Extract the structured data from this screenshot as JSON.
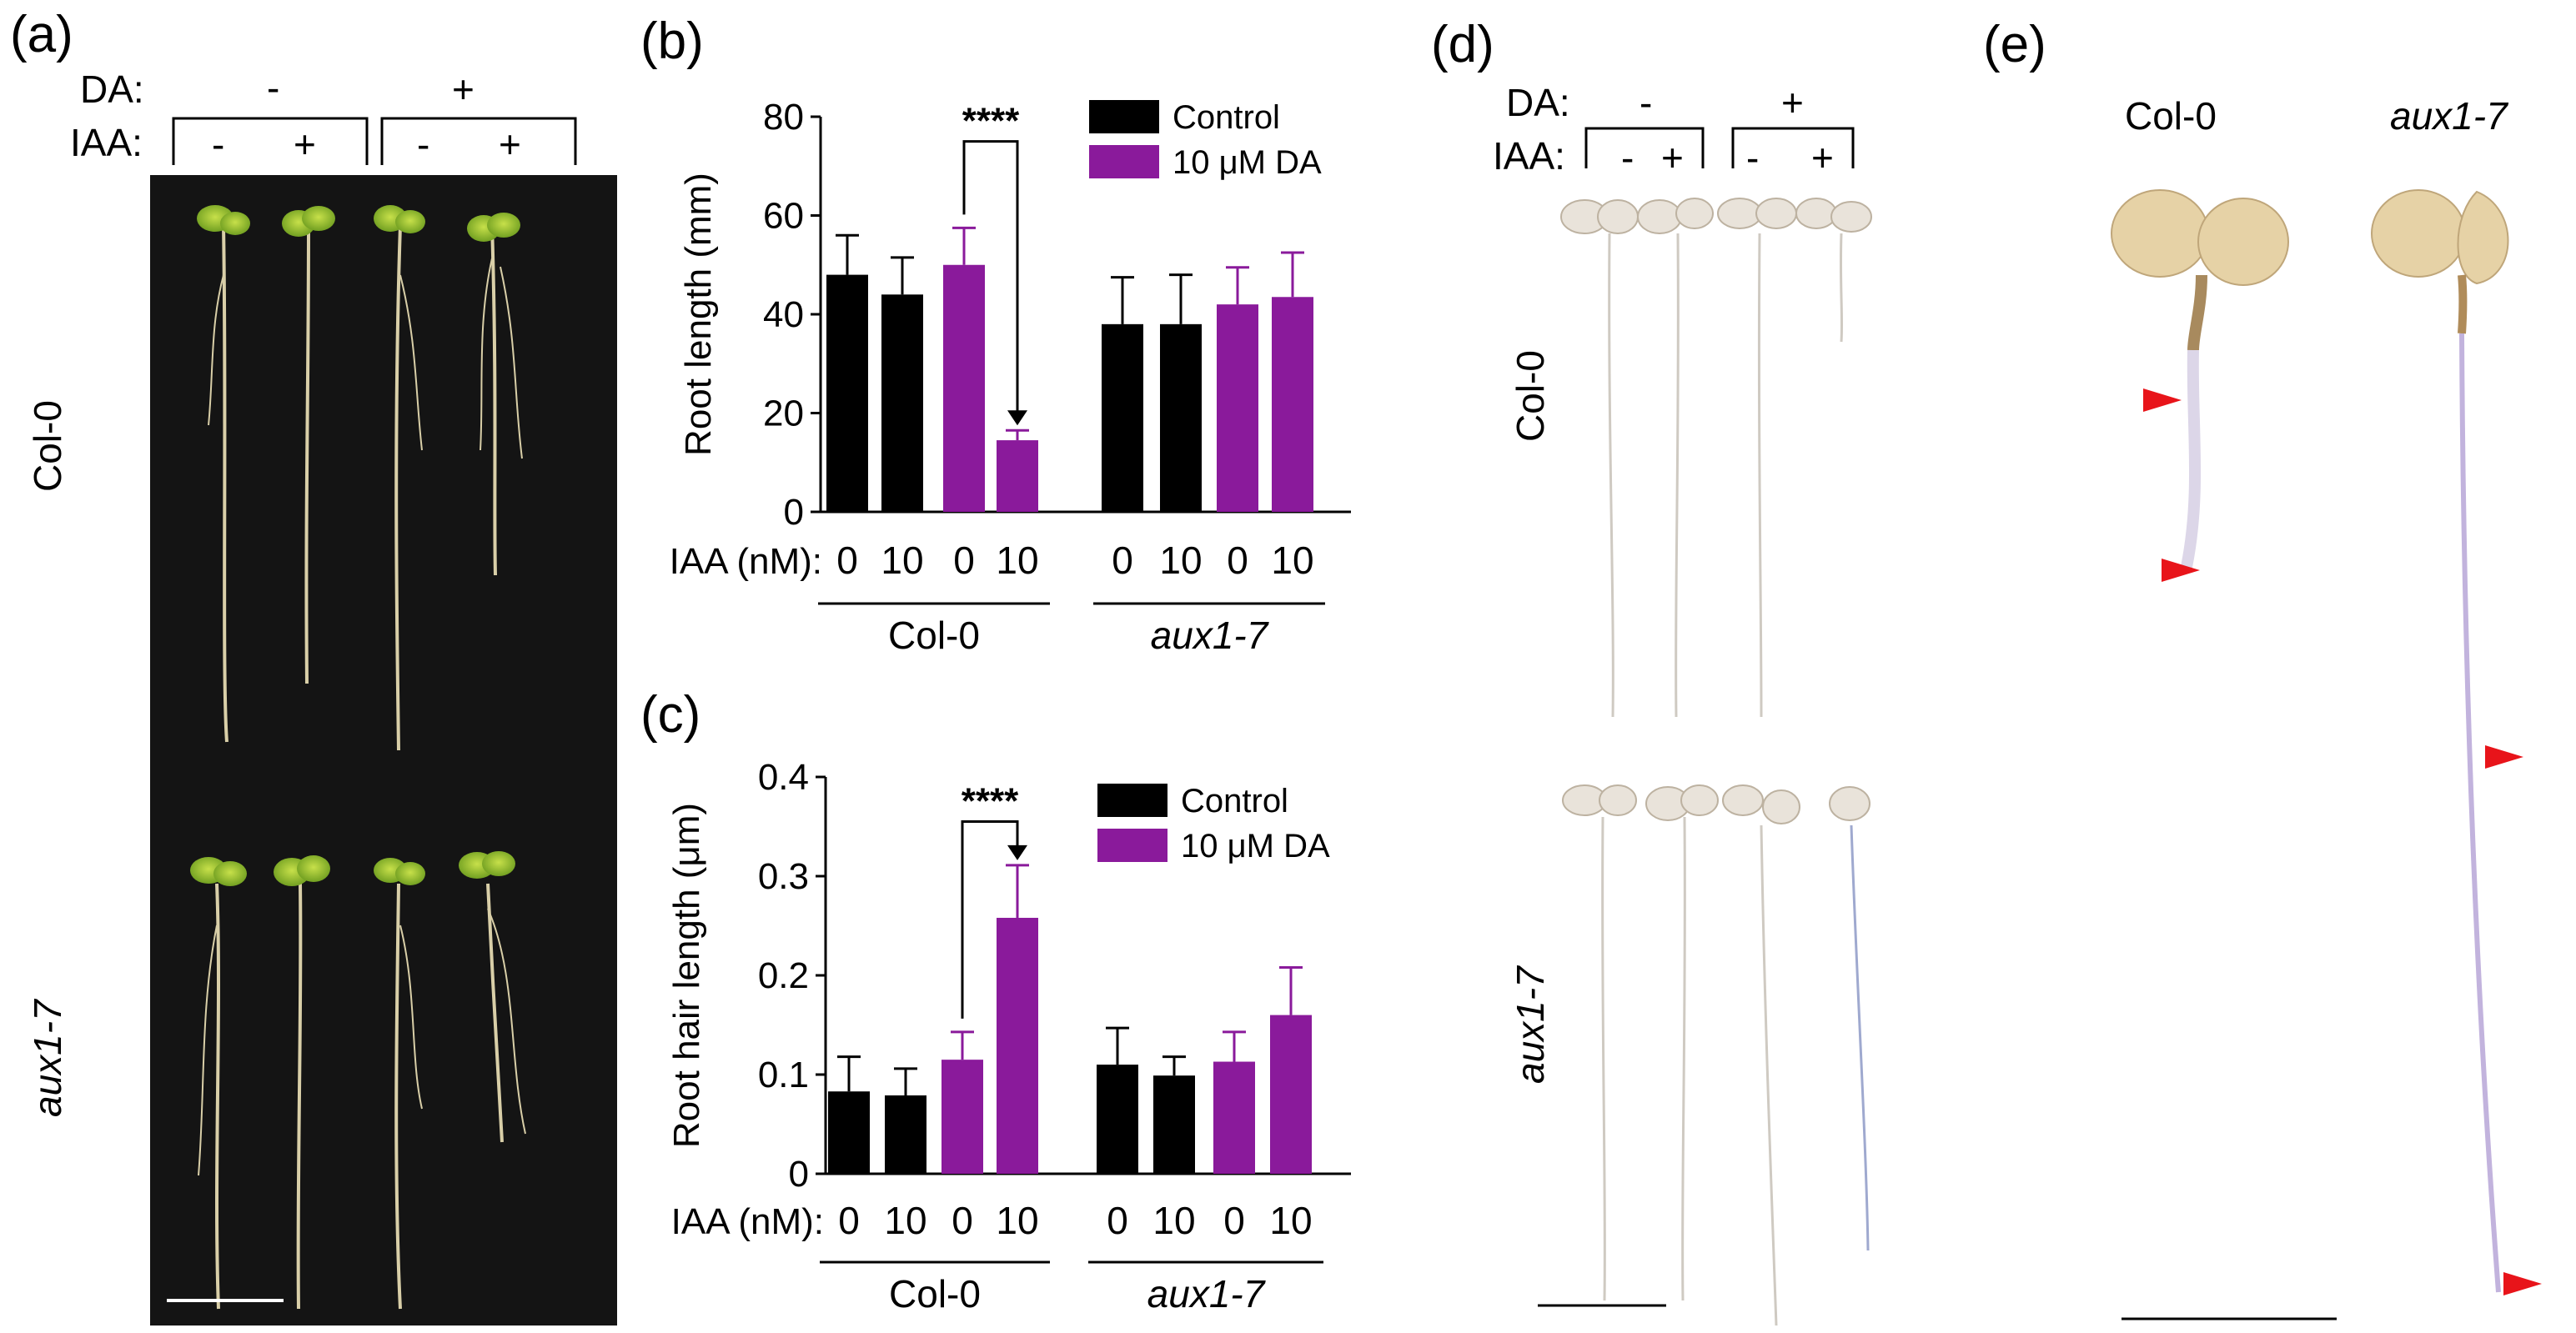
{
  "panels": {
    "a": "(a)",
    "b": "(b)",
    "c": "(c)",
    "d": "(d)",
    "e": "(e)"
  },
  "treatment_header": {
    "da_label": "DA:",
    "iaa_label": "IAA:",
    "minus": "-",
    "plus": "+"
  },
  "panel_a": {
    "row1": "Col-0",
    "row2": "aux1-7"
  },
  "panel_d": {
    "row1": "Col-0",
    "row2": "aux1-7"
  },
  "panel_e": {
    "col1": "Col-0",
    "col2": "aux1-7"
  },
  "chart_data": [
    {
      "type": "bar",
      "panel": "b",
      "ylabel": "Root length (mm)",
      "ylim": [
        0,
        80
      ],
      "yticks": [
        "0",
        "20",
        "40",
        "60",
        "80"
      ],
      "x_prefix": "IAA (nM):",
      "categories": [
        "0",
        "10",
        "0",
        "10",
        "0",
        "10",
        "0",
        "10"
      ],
      "groups": [
        "Col-0",
        "aux1-7"
      ],
      "legend": [
        "Control",
        "10 μM DA"
      ],
      "values": [
        48,
        44,
        50,
        14.5,
        38,
        38,
        42,
        43.5
      ],
      "errors": [
        8,
        7.5,
        7.5,
        2,
        9.5,
        10,
        7.5,
        9
      ],
      "colors": [
        "#000000",
        "#000000",
        "#8a1a9b",
        "#8a1a9b",
        "#000000",
        "#000000",
        "#8a1a9b",
        "#8a1a9b"
      ],
      "annotation": "****"
    },
    {
      "type": "bar",
      "panel": "c",
      "ylabel": "Root hair length (μm)",
      "ylim": [
        0,
        0.4
      ],
      "yticks": [
        "0",
        "0.1",
        "0.2",
        "0.3",
        "0.4"
      ],
      "x_prefix": "IAA (nM):",
      "categories": [
        "0",
        "10",
        "0",
        "10",
        "0",
        "10",
        "0",
        "10"
      ],
      "groups": [
        "Col-0",
        "aux1-7"
      ],
      "legend": [
        "Control",
        "10 μM DA"
      ],
      "values": [
        0.083,
        0.079,
        0.115,
        0.258,
        0.11,
        0.099,
        0.113,
        0.16
      ],
      "errors": [
        0.035,
        0.027,
        0.028,
        0.053,
        0.037,
        0.019,
        0.03,
        0.048
      ],
      "colors": [
        "#000000",
        "#000000",
        "#8a1a9b",
        "#8a1a9b",
        "#000000",
        "#000000",
        "#8a1a9b",
        "#8a1a9b"
      ],
      "annotation": "****"
    }
  ],
  "colors": {
    "control": "#000000",
    "da": "#8a1a9b",
    "arrowhead": "#e8141a",
    "plate": "#121212"
  }
}
